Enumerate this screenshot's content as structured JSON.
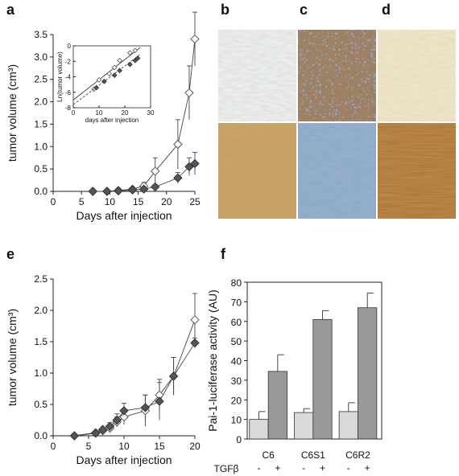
{
  "panels": {
    "a": "a",
    "b": "b",
    "c": "c",
    "d": "d",
    "e": "e",
    "f": "f"
  },
  "colors": {
    "dark_marker": "#555555",
    "open_marker": "#ffffff",
    "bar_light": "#d9d9d9",
    "bar_dark": "#999999",
    "axis": "#222222"
  },
  "chart_data": [
    {
      "id": "a",
      "type": "line",
      "xlabel": "Days after injection",
      "ylabel": "tumor volume (cm³)",
      "xlim": [
        0,
        25
      ],
      "ylim": [
        0,
        3.5
      ],
      "xticks": [
        0,
        5,
        10,
        15,
        20,
        25
      ],
      "yticks": [
        0.0,
        0.5,
        1.0,
        1.5,
        2.0,
        2.5,
        3.0,
        3.5
      ],
      "ytick_labels": [
        "0.0",
        "0.5",
        "1.0",
        "1.5",
        "2.0",
        "2.5",
        "3.0",
        "3.5"
      ],
      "series": [
        {
          "marker": "open-diamond",
          "x": [
            7,
            9.5,
            11.5,
            14,
            16,
            18,
            22,
            24,
            25
          ],
          "y": [
            0.0,
            0.0,
            0.02,
            0.05,
            0.12,
            0.45,
            1.05,
            2.2,
            3.4
          ],
          "err": [
            0,
            0,
            0.02,
            0.03,
            0.08,
            0.3,
            0.55,
            0.6,
            0.6
          ]
        },
        {
          "marker": "filled-diamond",
          "x": [
            7,
            9.5,
            11.5,
            14,
            16,
            18,
            22,
            24,
            25
          ],
          "y": [
            0.0,
            0.0,
            0.01,
            0.03,
            0.05,
            0.1,
            0.3,
            0.55,
            0.62
          ],
          "err": [
            0,
            0,
            0.01,
            0.02,
            0.03,
            0.05,
            0.12,
            0.2,
            0.25
          ]
        }
      ],
      "inset": {
        "type": "scatter",
        "xlabel": "days after injection",
        "ylabel": "Ln(tumor volume)",
        "xlim": [
          0,
          30
        ],
        "ylim": [
          -8,
          0
        ],
        "xticks": [
          0,
          10,
          20,
          30
        ],
        "yticks": [
          0,
          -2,
          -4,
          -6,
          -8
        ],
        "series": [
          {
            "marker": "open-diamond",
            "x": [
              8,
              10,
              14,
              16,
              18,
              22,
              24
            ],
            "y": [
              -5.6,
              -4.4,
              -3.6,
              -2.8,
              -1.9,
              -0.9,
              -0.6
            ],
            "fit": [
              [
                0,
                -7.0
              ],
              [
                26,
                -0.2
              ]
            ]
          },
          {
            "marker": "filled-diamond",
            "x": [
              9,
              12,
              16,
              18,
              22,
              24,
              25
            ],
            "y": [
              -5.4,
              -4.6,
              -3.8,
              -3.2,
              -2.4,
              -1.9,
              -1.6
            ],
            "fit": [
              [
                0,
                -7.6
              ],
              [
                26,
                -1.1
              ]
            ]
          }
        ]
      }
    },
    {
      "id": "e",
      "type": "line",
      "xlabel": "Days after injection",
      "ylabel": "tumor volume (cm³)",
      "xlim": [
        0,
        20
      ],
      "ylim": [
        0,
        2.5
      ],
      "xticks": [
        0,
        5,
        10,
        15,
        20
      ],
      "yticks": [
        0.0,
        0.5,
        1.0,
        1.5,
        2.0,
        2.5
      ],
      "ytick_labels": [
        "0.0",
        "0.5",
        "1.0",
        "1.5",
        "2.0",
        "2.5"
      ],
      "series": [
        {
          "marker": "open-diamond",
          "x": [
            3,
            6,
            7,
            8,
            9,
            10,
            13,
            15,
            17,
            20
          ],
          "y": [
            0.0,
            0.05,
            0.08,
            0.12,
            0.22,
            0.3,
            0.4,
            0.65,
            0.95,
            1.85
          ],
          "err": [
            0,
            0.02,
            0.04,
            0.06,
            0.08,
            0.12,
            0.25,
            0.25,
            0.3,
            0.42
          ]
        },
        {
          "marker": "filled-diamond",
          "x": [
            3,
            6,
            7,
            8,
            9,
            10,
            13,
            15,
            17,
            20
          ],
          "y": [
            0.0,
            0.04,
            0.1,
            0.15,
            0.25,
            0.4,
            0.45,
            0.55,
            0.95,
            1.48
          ],
          "err": [
            0,
            0.02,
            0.04,
            0.06,
            0.1,
            0.12,
            0.2,
            0.3,
            0.3,
            0.08
          ]
        }
      ]
    },
    {
      "id": "f",
      "type": "bar",
      "ylabel": "Pai-1-luciferase activity (AU)",
      "ylim": [
        0,
        80
      ],
      "yticks": [
        0,
        10,
        20,
        30,
        40,
        50,
        60,
        70,
        80
      ],
      "groups": [
        "C6",
        "C6S1",
        "C6R2"
      ],
      "condition_labels": [
        "-",
        "+"
      ],
      "condition_title": "TGFβ",
      "series": [
        {
          "condition": "-",
          "values": [
            10,
            13.5,
            14
          ],
          "err": [
            4,
            2,
            4.5
          ]
        },
        {
          "condition": "+",
          "values": [
            34.5,
            61,
            67
          ],
          "err": [
            8.5,
            4.5,
            7.5
          ]
        }
      ]
    }
  ],
  "micrographs": [
    {
      "panel": "b",
      "position": "top",
      "stain": "light"
    },
    {
      "panel": "b",
      "position": "bottom",
      "stain": "brown"
    },
    {
      "panel": "c",
      "position": "top",
      "stain": "blue-brown-dots"
    },
    {
      "panel": "c",
      "position": "bottom",
      "stain": "blue"
    },
    {
      "panel": "d",
      "position": "top",
      "stain": "light-brown"
    },
    {
      "panel": "d",
      "position": "bottom",
      "stain": "dark-brown"
    }
  ]
}
